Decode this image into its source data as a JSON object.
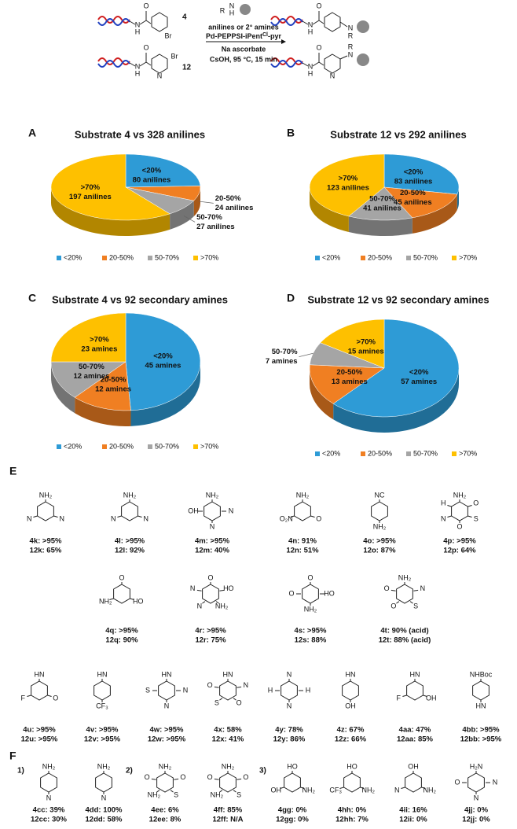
{
  "scheme": {
    "amine_atoms": [
      "R",
      "N",
      "H"
    ],
    "sm4_atoms": [
      "O",
      "N",
      "H",
      "Br"
    ],
    "sm12_atoms": [
      "O",
      "N",
      "H",
      "N",
      "Br"
    ],
    "p4_atoms": [
      "O",
      "N",
      "H",
      "N",
      "R"
    ],
    "p12_atoms": [
      "O",
      "N",
      "H",
      "N",
      "R",
      "N"
    ],
    "label_4": "4",
    "label_12": "12",
    "reagent": "anilines or 2° amines",
    "catalyst": "Pd-PEPPSI-iPent",
    "catalyst_sup": "Cl",
    "catalyst_end": "-pyr",
    "additive": "Na ascorbate",
    "conditions": "CsOH, 95 °C, 15 min"
  },
  "chart_data": [
    {
      "type": "pie",
      "panel": "A",
      "title": "Substrate 4 vs 328 anilines",
      "categories": [
        "<20%",
        "20-50%",
        "50-70%",
        ">70%"
      ],
      "values": [
        80,
        24,
        27,
        197
      ],
      "value_labels": [
        "80 anilines",
        "24 anilines",
        "27 anilines",
        "197 anilines"
      ],
      "colors": [
        "#2e9bd6",
        "#f07f22",
        "#a5a5a5",
        "#fec000"
      ],
      "legend": "bottom"
    },
    {
      "type": "pie",
      "panel": "B",
      "title": "Substrate 12 vs 292 anilines",
      "categories": [
        "<20%",
        "20-50%",
        "50-70%",
        ">70%"
      ],
      "values": [
        83,
        45,
        41,
        123
      ],
      "value_labels": [
        "83 anilines",
        "45 anilines",
        "41 anilines",
        "123 anilines"
      ],
      "colors": [
        "#2e9bd6",
        "#f07f22",
        "#a5a5a5",
        "#fec000"
      ],
      "legend": "bottom"
    },
    {
      "type": "pie",
      "panel": "C",
      "title": "Substrate 4 vs 92 secondary amines",
      "categories": [
        "<20%",
        "20-50%",
        "50-70%",
        ">70%"
      ],
      "values": [
        45,
        12,
        12,
        23
      ],
      "value_labels": [
        "45 amines",
        "12 amines",
        "12 amines",
        "23 amines"
      ],
      "colors": [
        "#2e9bd6",
        "#f07f22",
        "#a5a5a5",
        "#fec000"
      ],
      "legend": "bottom"
    },
    {
      "type": "pie",
      "panel": "D",
      "title": "Substrate 12 vs 92 secondary amines",
      "categories": [
        "<20%",
        "20-50%",
        "50-70%",
        ">70%"
      ],
      "values": [
        57,
        13,
        7,
        15
      ],
      "value_labels": [
        "57 amines",
        "13 amines",
        "7 amines",
        "15 amines"
      ],
      "colors": [
        "#2e9bd6",
        "#f07f22",
        "#a5a5a5",
        "#fec000"
      ],
      "legend": "bottom"
    }
  ],
  "panel_e": {
    "label": "E",
    "compounds": [
      {
        "atoms": [
          "NH₂",
          "N",
          "N"
        ],
        "results": [
          "4k: >95%",
          "12k: 65%"
        ]
      },
      {
        "atoms": [
          "NH₂",
          "N",
          "N"
        ],
        "results": [
          "4l: >95%",
          "12l: 92%"
        ]
      },
      {
        "atoms": [
          "NH₂",
          "N",
          "N",
          "OH"
        ],
        "results": [
          "4m: >95%",
          "12m: 40%"
        ]
      },
      {
        "atoms": [
          "NH₂",
          "O",
          "O₂N"
        ],
        "results": [
          "4n: 91%",
          "12n: 51%"
        ]
      },
      {
        "atoms": [
          "NC",
          "NH₂"
        ],
        "results": [
          "4o: >95%",
          "12o: 87%"
        ]
      },
      {
        "atoms": [
          "NH₂",
          "O",
          "S",
          "O",
          "N",
          "H"
        ],
        "results": [
          "4p: >95%",
          "12p: 64%"
        ]
      },
      {
        "atoms": [
          "O",
          "HO",
          "NH₂"
        ],
        "results": [
          "4q: >95%",
          "12q: 90%"
        ]
      },
      {
        "atoms": [
          "O",
          "HO",
          "NH₂",
          "N",
          "N"
        ],
        "results": [
          "4r: >95%",
          "12r: 75%"
        ]
      },
      {
        "atoms": [
          "O",
          "HO",
          "NH₂",
          "O"
        ],
        "results": [
          "4s: >95%",
          "12s: 88%"
        ]
      },
      {
        "atoms": [
          "NH₂",
          "N",
          "S",
          "O",
          "O"
        ],
        "results": [
          "4t: 90% (acid)",
          "12t: 88% (acid)"
        ]
      },
      {
        "atoms": [
          "HN",
          "O",
          "F"
        ],
        "results": [
          "4u: >95%",
          "12u: >95%"
        ]
      },
      {
        "atoms": [
          "HN",
          "CF₃"
        ],
        "results": [
          "4v: >95%",
          "12v: >95%"
        ]
      },
      {
        "atoms": [
          "HN",
          "N",
          "N",
          "S"
        ],
        "results": [
          "4w: >95%",
          "12w: >95%"
        ]
      },
      {
        "atoms": [
          "HN",
          "N",
          "O",
          "S",
          "O"
        ],
        "results": [
          "4x: 58%",
          "12x: 41%"
        ]
      },
      {
        "atoms": [
          "N",
          "H",
          "N",
          "H"
        ],
        "results": [
          "4y: 78%",
          "12y: 86%"
        ]
      },
      {
        "atoms": [
          "HN",
          "OH"
        ],
        "results": [
          "4z: 67%",
          "12z: 66%"
        ]
      },
      {
        "atoms": [
          "HN",
          "OH",
          "F"
        ],
        "results": [
          "4aa: 47%",
          "12aa: 85%"
        ]
      },
      {
        "atoms": [
          "NHBoc",
          "HN"
        ],
        "results": [
          "4bb: >95%",
          "12bb: >95%"
        ]
      }
    ]
  },
  "panel_f": {
    "label": "F",
    "groups": [
      "1)",
      "2)",
      "3)"
    ],
    "compounds": [
      {
        "atoms": [
          "NH₂",
          "N"
        ],
        "results": [
          "4cc: 39%",
          "12cc: 30%"
        ]
      },
      {
        "atoms": [
          "NH₂",
          "N"
        ],
        "results": [
          "4dd: 100%",
          "12dd: 58%"
        ]
      },
      {
        "atoms": [
          "NH₂",
          "O",
          "S",
          "NH₂",
          "O"
        ],
        "results": [
          "4ee: 6%",
          "12ee: 8%"
        ]
      },
      {
        "atoms": [
          "NH₂",
          "O",
          "S",
          "NH₂",
          "O"
        ],
        "results": [
          "4ff: 85%",
          "12ff: N/A"
        ]
      },
      {
        "atoms": [
          "HO",
          "NH₂",
          "OH"
        ],
        "results": [
          "4gg: 0%",
          "12gg: 0%"
        ]
      },
      {
        "atoms": [
          "HO",
          "NH₂",
          "CF₃"
        ],
        "results": [
          "4hh: 0%",
          "12hh: 7%"
        ]
      },
      {
        "atoms": [
          "OH",
          "NH₂",
          "N"
        ],
        "results": [
          "4ii: 16%",
          "12ii: 0%"
        ]
      },
      {
        "atoms": [
          "H₂N",
          "N",
          "N",
          "O"
        ],
        "results": [
          "4jj: 0%",
          "12jj: 0%"
        ]
      }
    ]
  }
}
